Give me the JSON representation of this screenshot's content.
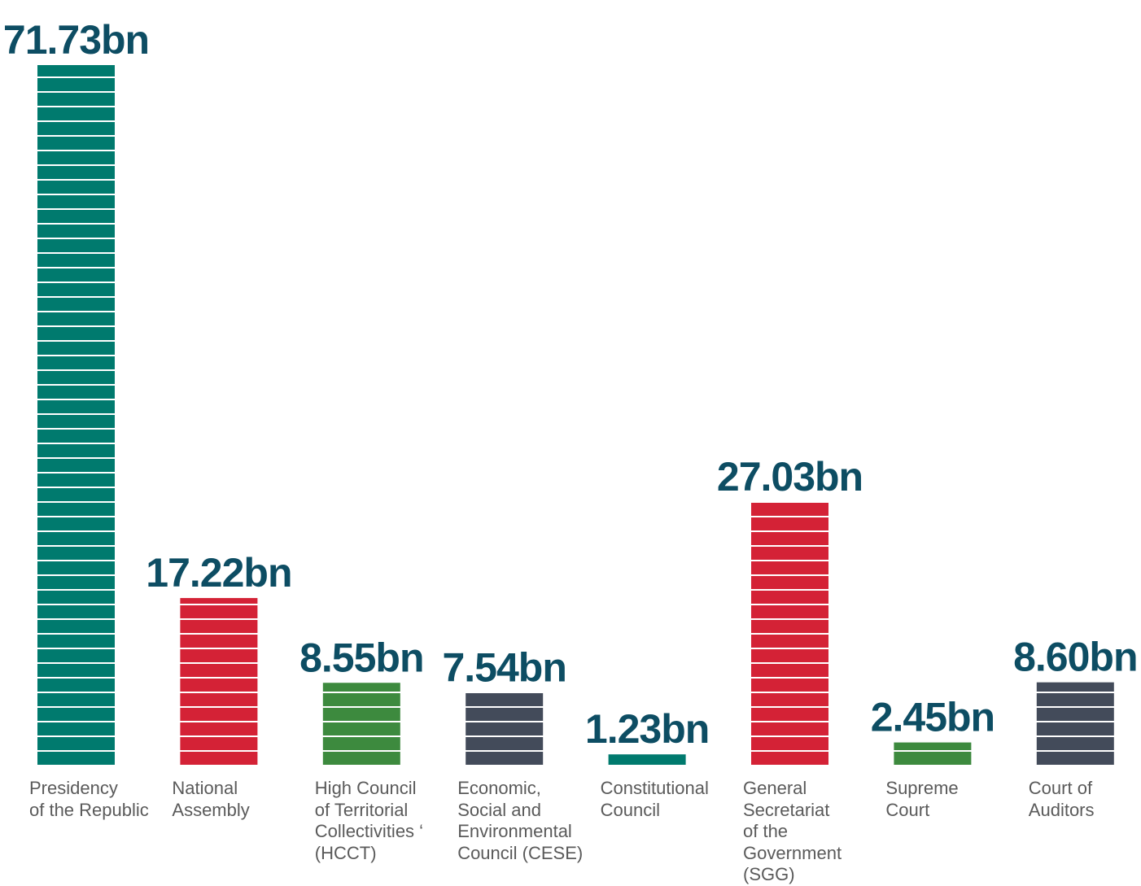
{
  "chart_data": {
    "type": "bar",
    "categories": [
      "Presidency\nof the Republic",
      "National\nAssembly",
      "High Council\nof Territorial\nCollectivities ‘\n(HCCT)",
      "Economic,\nSocial and\nEnvironmental\nCouncil (CESE)",
      "Constitutional\nCouncil",
      "General\nSecretariat\nof the\nGovernment\n(SGG)",
      "Supreme\nCourt",
      "Court of\nAuditors"
    ],
    "values": [
      71.73,
      17.22,
      8.55,
      7.54,
      1.23,
      27.03,
      2.45,
      8.6
    ],
    "value_labels": [
      "71.73bn",
      "17.22bn",
      "8.55bn",
      "7.54bn",
      "1.23bn",
      "27.03bn",
      "2.45bn",
      "8.60bn"
    ],
    "colors": [
      "#007a6e",
      "#d42236",
      "#3d8a3e",
      "#434b5a",
      "#007a6e",
      "#d42236",
      "#3d8a3e",
      "#434b5a"
    ]
  }
}
